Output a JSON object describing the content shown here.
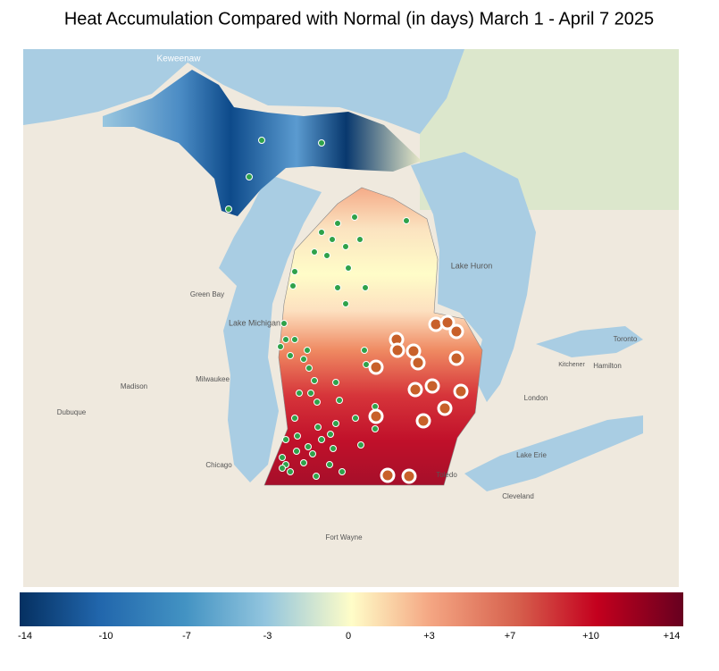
{
  "title": "Heat Accumulation Compared with Normal (in days) March 1 - April 7 2025",
  "colorbar": {
    "ticks": [
      "-14",
      "-10",
      "-7",
      "-3",
      "0",
      "+3",
      "+7",
      "+10",
      "+14"
    ]
  },
  "map_labels": [
    "Keweenaw",
    "Lake Michigan",
    "Lake Huron",
    "Lake Erie",
    "Madison",
    "Milwaukee",
    "Chicago",
    "Toronto",
    "Hamilton",
    "London",
    "Cleveland",
    "Toledo",
    "Fort Wayne",
    "Dubuque",
    "Green Bay",
    "Kitchener"
  ]
}
